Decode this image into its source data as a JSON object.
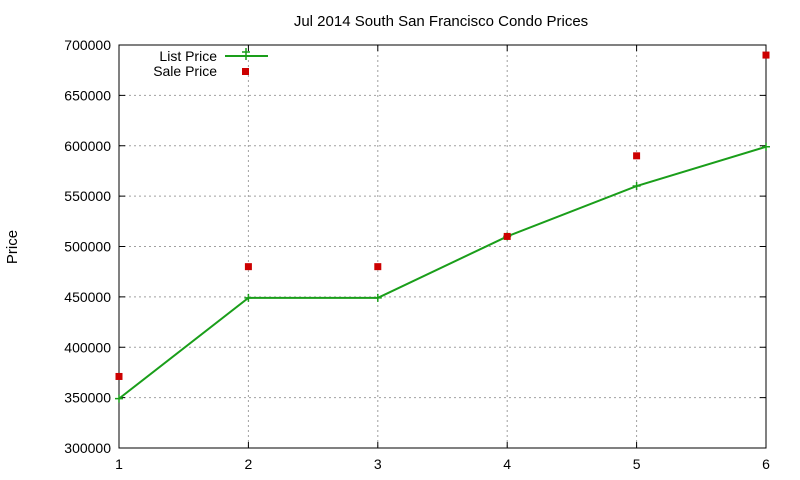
{
  "chart_data": {
    "type": "line",
    "title": "Jul 2014 South San Francisco Condo Prices",
    "xlabel": "",
    "ylabel": "Price",
    "x": [
      1,
      2,
      3,
      4,
      5,
      6
    ],
    "xlim": [
      1,
      6
    ],
    "ylim": [
      300000,
      700000
    ],
    "xticks": [
      "1",
      "2",
      "3",
      "4",
      "5",
      "6"
    ],
    "yticks": [
      "300000",
      "350000",
      "400000",
      "450000",
      "500000",
      "550000",
      "600000",
      "650000",
      "700000"
    ],
    "grid": true,
    "legend_position": "top-left",
    "series": [
      {
        "name": "List Price",
        "style": "linespoints",
        "marker": "plus",
        "color": "#1a9e1a",
        "values": [
          349000,
          449000,
          449000,
          510000,
          560000,
          599000
        ]
      },
      {
        "name": "Sale Price",
        "style": "points",
        "marker": "square",
        "color": "#cc0000",
        "values": [
          371000,
          480000,
          480000,
          510000,
          590000,
          690000
        ]
      }
    ]
  }
}
